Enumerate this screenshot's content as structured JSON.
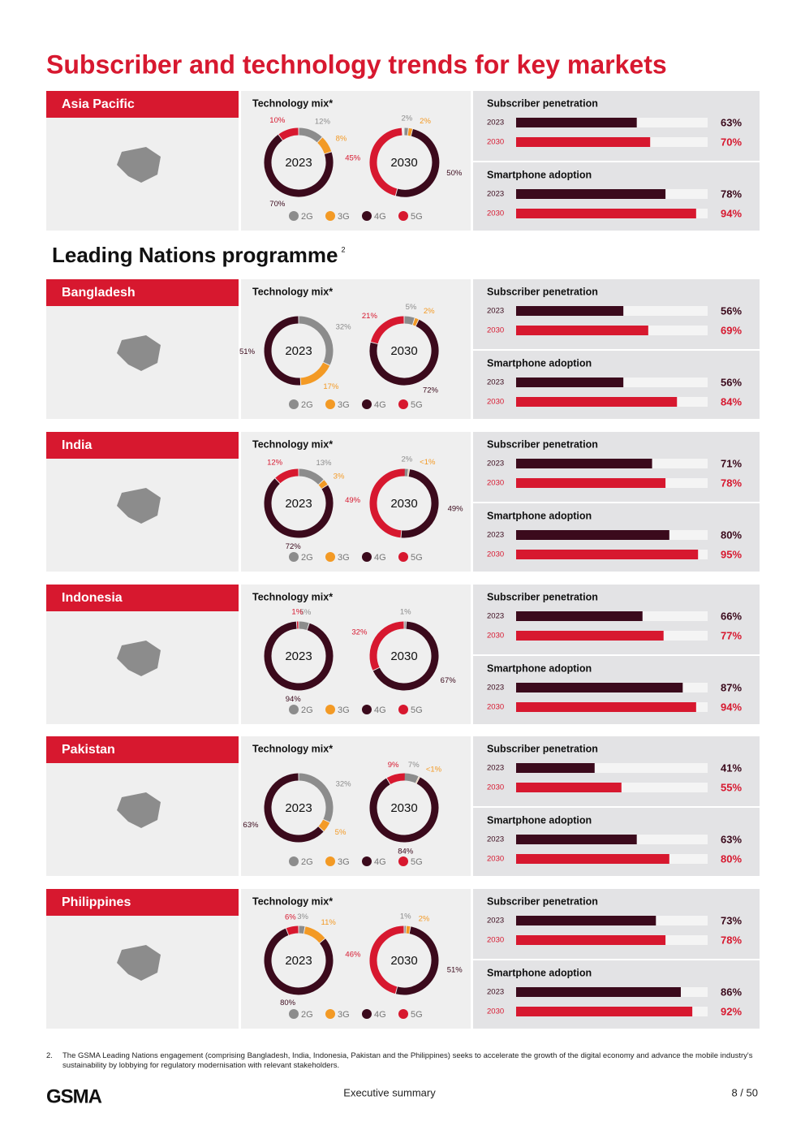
{
  "title": "Subscriber and technology trends for key markets",
  "subtitle": "Leading Nations programme",
  "subtitle_note": "2",
  "legend": [
    "2G",
    "3G",
    "4G",
    "5G"
  ],
  "colors": [
    "#8c8c8c",
    "#f39a25",
    "#3b0a1c",
    "#d7182f"
  ],
  "bar_xlim": [
    0,
    100
  ],
  "bar_colors": [
    "#3b0a1c",
    "#d7182f"
  ],
  "regions": [
    {
      "name": "Asia Pacific",
      "tech_title": "Technology mix*",
      "donuts": [
        {
          "year": "2023",
          "values": [
            12,
            8,
            70,
            10
          ],
          "value_labels": [
            "12%",
            "8%",
            "70%",
            "10%"
          ]
        },
        {
          "year": "2030",
          "values": [
            2,
            2,
            50,
            45
          ],
          "value_labels": [
            "2%",
            "2%",
            "50%",
            "45%"
          ]
        }
      ],
      "bar_groups": [
        {
          "title": "Subscriber penetration",
          "years": [
            "2023",
            "2030"
          ],
          "values": [
            63,
            70
          ],
          "value_labels": [
            "63%",
            "70%"
          ]
        },
        {
          "title": "Smartphone adoption",
          "years": [
            "2023",
            "2030"
          ],
          "values": [
            78,
            94
          ],
          "value_labels": [
            "78%",
            "94%"
          ]
        }
      ]
    },
    {
      "name": "Bangladesh",
      "tech_title": "Technology mix*",
      "donuts": [
        {
          "year": "2023",
          "values": [
            32,
            17,
            51,
            null
          ],
          "value_labels": [
            "32%",
            "17%",
            "51%",
            null
          ]
        },
        {
          "year": "2030",
          "values": [
            5,
            2,
            72,
            21
          ],
          "value_labels": [
            "5%",
            "2%",
            "72%",
            "21%"
          ]
        }
      ],
      "bar_groups": [
        {
          "title": "Subscriber penetration",
          "years": [
            "2023",
            "2030"
          ],
          "values": [
            56,
            69
          ],
          "value_labels": [
            "56%",
            "69%"
          ]
        },
        {
          "title": "Smartphone adoption",
          "years": [
            "2023",
            "2030"
          ],
          "values": [
            56,
            84
          ],
          "value_labels": [
            "56%",
            "84%"
          ]
        }
      ]
    },
    {
      "name": "India",
      "tech_title": "Technology mix*",
      "donuts": [
        {
          "year": "2023",
          "values": [
            13,
            3,
            72,
            12
          ],
          "value_labels": [
            "13%",
            "3%",
            "72%",
            "12%"
          ]
        },
        {
          "year": "2030",
          "values": [
            2,
            0.5,
            49,
            49
          ],
          "value_labels": [
            "2%",
            "<1%",
            "49%",
            "49%"
          ]
        }
      ],
      "bar_groups": [
        {
          "title": "Subscriber penetration",
          "years": [
            "2023",
            "2030"
          ],
          "values": [
            71,
            78
          ],
          "value_labels": [
            "71%",
            "78%"
          ]
        },
        {
          "title": "Smartphone adoption",
          "years": [
            "2023",
            "2030"
          ],
          "values": [
            80,
            95
          ],
          "value_labels": [
            "80%",
            "95%"
          ]
        }
      ]
    },
    {
      "name": "Indonesia",
      "tech_title": "Technology mix*",
      "donuts": [
        {
          "year": "2023",
          "values": [
            5,
            null,
            94,
            1
          ],
          "value_labels": [
            "5%",
            null,
            "94%",
            "1%"
          ]
        },
        {
          "year": "2030",
          "values": [
            1,
            null,
            67,
            32
          ],
          "value_labels": [
            "1%",
            null,
            "67%",
            "32%"
          ]
        }
      ],
      "bar_groups": [
        {
          "title": "Subscriber penetration",
          "years": [
            "2023",
            "2030"
          ],
          "values": [
            66,
            77
          ],
          "value_labels": [
            "66%",
            "77%"
          ]
        },
        {
          "title": "Smartphone adoption",
          "years": [
            "2023",
            "2030"
          ],
          "values": [
            87,
            94
          ],
          "value_labels": [
            "87%",
            "94%"
          ]
        }
      ]
    },
    {
      "name": "Pakistan",
      "tech_title": "Technology mix*",
      "donuts": [
        {
          "year": "2023",
          "values": [
            32,
            5,
            63,
            null
          ],
          "value_labels": [
            "32%",
            "5%",
            "63%",
            null
          ]
        },
        {
          "year": "2030",
          "values": [
            7,
            0.5,
            84,
            9
          ],
          "value_labels": [
            "7%",
            "<1%",
            "84%",
            "9%"
          ]
        }
      ],
      "bar_groups": [
        {
          "title": "Subscriber penetration",
          "years": [
            "2023",
            "2030"
          ],
          "values": [
            41,
            55
          ],
          "value_labels": [
            "41%",
            "55%"
          ]
        },
        {
          "title": "Smartphone adoption",
          "years": [
            "2023",
            "2030"
          ],
          "values": [
            63,
            80
          ],
          "value_labels": [
            "63%",
            "80%"
          ]
        }
      ]
    },
    {
      "name": "Philippines",
      "tech_title": "Technology mix*",
      "donuts": [
        {
          "year": "2023",
          "values": [
            3,
            11,
            80,
            6
          ],
          "value_labels": [
            "3%",
            "11%",
            "80%",
            "6%"
          ]
        },
        {
          "year": "2030",
          "values": [
            1,
            2,
            51,
            46
          ],
          "value_labels": [
            "1%",
            "2%",
            "51%",
            "46%"
          ]
        }
      ],
      "bar_groups": [
        {
          "title": "Subscriber penetration",
          "years": [
            "2023",
            "2030"
          ],
          "values": [
            73,
            78
          ],
          "value_labels": [
            "73%",
            "78%"
          ]
        },
        {
          "title": "Smartphone adoption",
          "years": [
            "2023",
            "2030"
          ],
          "values": [
            86,
            92
          ],
          "value_labels": [
            "86%",
            "92%"
          ]
        }
      ]
    }
  ],
  "footnote": {
    "number": "2.",
    "text": "The GSMA Leading Nations engagement (comprising Bangladesh, India, Indonesia, Pakistan and the Philippines) seeks to accelerate the growth of the digital economy and advance the mobile industry's sustainability by lobbying for regulatory modernisation with relevant stakeholders."
  },
  "footer": {
    "logo": "GSMA",
    "center": "Executive summary",
    "page": "8 / 50"
  }
}
